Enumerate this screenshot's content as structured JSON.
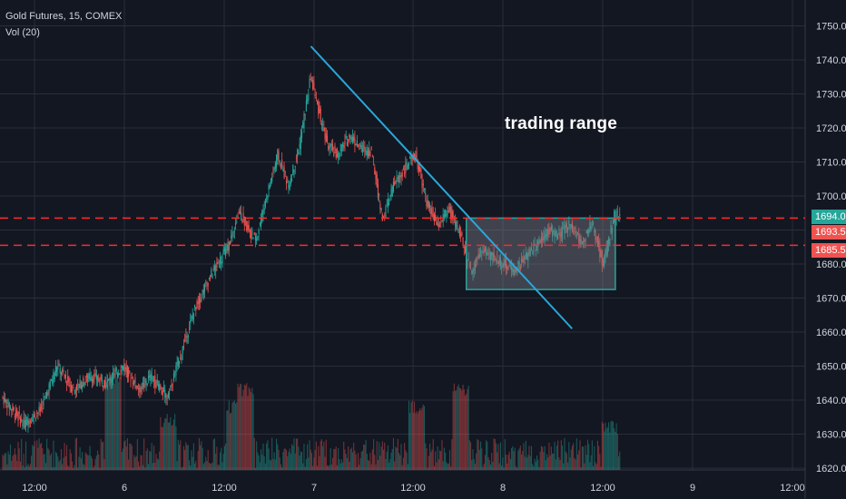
{
  "header": {
    "symbol_line": "Gold Futures, 15, COMEX",
    "indicator_line": "Vol (20)"
  },
  "annotation": {
    "text": "trading range"
  },
  "price_tags": [
    {
      "label": "1694.0",
      "value": 1694.0,
      "color": "#26a69a"
    },
    {
      "label": "1693.5",
      "value": 1693.5,
      "color": "#ef5350"
    },
    {
      "label": "1685.5",
      "value": 1685.5,
      "color": "#ef5350"
    }
  ],
  "colors": {
    "background": "#131722",
    "grid": "#2a2e39",
    "axis_text": "#d1d4dc",
    "up": "#26a69a",
    "down": "#ef5350",
    "trendline": "#2aa7d9",
    "range_box": "#26a69a",
    "level_line": "#ff2a2a"
  },
  "chart_data": {
    "type": "candlestick",
    "title": "Gold Futures, 15, COMEX",
    "y_axis": {
      "ticks": [
        1750.0,
        1740.0,
        1730.0,
        1720.0,
        1710.0,
        1700.0,
        1690.0,
        1680.0,
        1670.0,
        1660.0,
        1650.0,
        1640.0,
        1630.0,
        1620.0
      ],
      "tick_labels": [
        "1750.0",
        "1740.0",
        "1730.0",
        "1720.0",
        "1710.0",
        "1700.0",
        "1690.0",
        "1680.0",
        "1670.0",
        "1660.0",
        "1650.0",
        "1640.0",
        "1630.0",
        "1620.0"
      ],
      "range": [
        1613,
        1753
      ]
    },
    "x_axis": {
      "tick_labels": [
        "12:00",
        "6",
        "12:00",
        "7",
        "12:00",
        "8",
        "12:00",
        "9",
        "12:00"
      ]
    },
    "price_path": [
      [
        0,
        1641
      ],
      [
        4,
        1633
      ],
      [
        7,
        1637
      ],
      [
        10,
        1650
      ],
      [
        13,
        1643
      ],
      [
        16,
        1647
      ],
      [
        19,
        1645
      ],
      [
        22,
        1650
      ],
      [
        25,
        1643
      ],
      [
        27,
        1647
      ],
      [
        30,
        1641
      ],
      [
        32,
        1651
      ],
      [
        35,
        1667
      ],
      [
        38,
        1677
      ],
      [
        41,
        1685
      ],
      [
        43,
        1695
      ],
      [
        46,
        1687
      ],
      [
        48,
        1700
      ],
      [
        50,
        1712
      ],
      [
        52,
        1703
      ],
      [
        54,
        1715
      ],
      [
        56,
        1735
      ],
      [
        57,
        1728
      ],
      [
        59,
        1715
      ],
      [
        61,
        1712
      ],
      [
        63,
        1718
      ],
      [
        65,
        1714
      ],
      [
        67,
        1713
      ],
      [
        69,
        1693
      ],
      [
        71,
        1703
      ],
      [
        73,
        1708
      ],
      [
        75,
        1712
      ],
      [
        77,
        1698
      ],
      [
        79,
        1691
      ],
      [
        81,
        1696
      ],
      [
        83,
        1689
      ],
      [
        85,
        1678
      ],
      [
        87,
        1684
      ],
      [
        89,
        1682
      ],
      [
        91,
        1680
      ],
      [
        93,
        1678
      ],
      [
        95,
        1682
      ],
      [
        97,
        1686
      ],
      [
        99,
        1690
      ],
      [
        101,
        1688
      ],
      [
        103,
        1692
      ],
      [
        105,
        1686
      ],
      [
        107,
        1692
      ],
      [
        109,
        1680
      ],
      [
        111,
        1694
      ]
    ],
    "volume": {
      "indicator": "Vol (20)",
      "peaks": [
        [
          20,
          1648
        ],
        [
          30,
          1636
        ],
        [
          42,
          1640
        ],
        [
          44,
          1645
        ],
        [
          75,
          1640
        ],
        [
          83,
          1645
        ],
        [
          110,
          1634
        ]
      ]
    },
    "trendline": {
      "start": [
        56,
        1744
      ],
      "end": [
        103,
        1661
      ]
    },
    "range_box": {
      "x_start": 84,
      "x_end": 111,
      "top": 1693.5,
      "bottom": 1672.5
    },
    "levels": [
      1693.5,
      1685.5
    ]
  }
}
